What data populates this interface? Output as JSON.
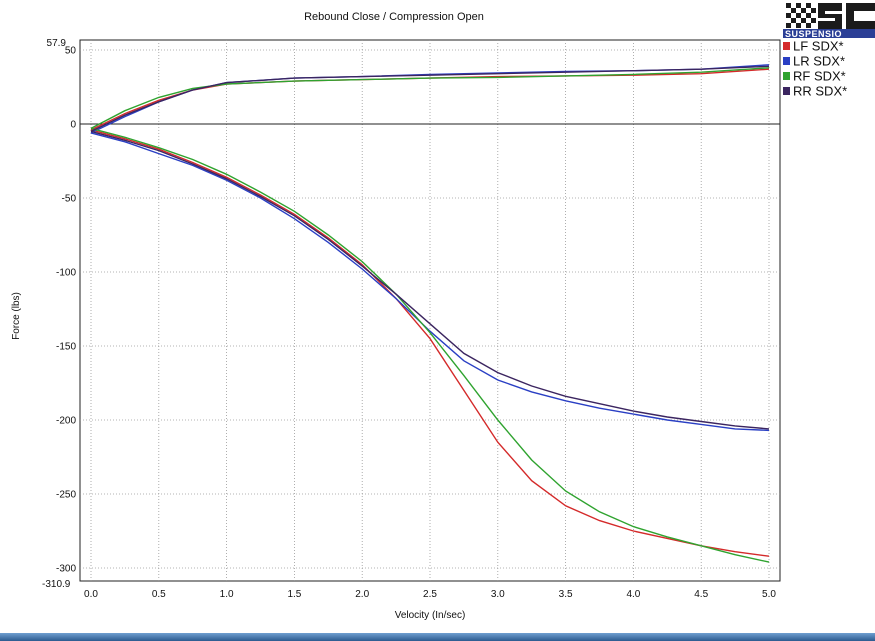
{
  "brand": {
    "logo_text": "SUSPENSIO",
    "colors": {
      "check_dark": "#1b1b1b",
      "check_light": "#ffffff",
      "banner": "#2b3f96"
    }
  },
  "chart_data": {
    "type": "line",
    "title": "Rebound Close / Compression Open",
    "xlabel": "Velocity (In/sec)",
    "ylabel": "Force (lbs)",
    "xlim": [
      0.0,
      5.0
    ],
    "ylim": [
      -310.9,
      57.9
    ],
    "x_ticks": [
      0.0,
      0.5,
      1.0,
      1.5,
      2.0,
      2.5,
      3.0,
      3.5,
      4.0,
      4.5,
      5.0
    ],
    "x_tick_labels": [
      "0.0",
      "0.5",
      "1.0",
      "1.5",
      "2.0",
      "2.5",
      "3.0",
      "3.5",
      "4.0",
      "4.5",
      "5.0"
    ],
    "y_ticks": [
      50,
      0,
      -50,
      -100,
      -150,
      -200,
      -250,
      -300
    ],
    "y_tick_labels": [
      "50",
      "0",
      "-50",
      "-100",
      "-150",
      "-200",
      "-250",
      "-300"
    ],
    "y_max_label": "57.9",
    "y_min_label": "-310.9",
    "grid": true,
    "legend_position": "top-right",
    "series": [
      {
        "name": "LF SDX*",
        "color": "#d42a2a",
        "compression": {
          "x": [
            0.0,
            0.25,
            0.5,
            0.75,
            1.0,
            1.5,
            2.0,
            2.5,
            3.0,
            3.5,
            4.0,
            4.5,
            5.0
          ],
          "y": [
            -4,
            7,
            16,
            23,
            27,
            29,
            30,
            31,
            32,
            32.5,
            33,
            34,
            37
          ]
        },
        "rebound": {
          "x": [
            0.0,
            0.25,
            0.5,
            0.75,
            1.0,
            1.25,
            1.5,
            1.75,
            2.0,
            2.25,
            2.5,
            2.75,
            3.0,
            3.25,
            3.5,
            3.75,
            4.0,
            4.25,
            4.5,
            4.75,
            5.0
          ],
          "y": [
            -4,
            -10,
            -17,
            -26,
            -36,
            -48,
            -61,
            -77,
            -95,
            -118,
            -145,
            -180,
            -215,
            -241,
            -258,
            -268,
            -275,
            -280,
            -285,
            -289,
            -292
          ]
        }
      },
      {
        "name": "LR SDX*",
        "color": "#2a3fc4",
        "compression": {
          "x": [
            0.0,
            0.25,
            0.5,
            0.75,
            1.0,
            1.5,
            2.0,
            2.5,
            3.0,
            3.5,
            4.0,
            4.5,
            5.0
          ],
          "y": [
            -6,
            5,
            15,
            23,
            28,
            31,
            32,
            33.5,
            34.5,
            35.5,
            36,
            37,
            40
          ]
        },
        "rebound": {
          "x": [
            0.0,
            0.25,
            0.5,
            0.75,
            1.0,
            1.25,
            1.5,
            1.75,
            2.0,
            2.25,
            2.5,
            2.75,
            3.0,
            3.25,
            3.5,
            3.75,
            4.0,
            4.25,
            4.5,
            4.75,
            5.0
          ],
          "y": [
            -6,
            -12,
            -20,
            -28,
            -38,
            -50,
            -64,
            -80,
            -98,
            -118,
            -140,
            -160,
            -173,
            -181,
            -187,
            -192,
            -196,
            -200,
            -203,
            -206,
            -207
          ]
        }
      },
      {
        "name": "RF SDX*",
        "color": "#2fa32f",
        "compression": {
          "x": [
            0.0,
            0.25,
            0.5,
            0.75,
            1.0,
            1.5,
            2.0,
            2.5,
            3.0,
            3.5,
            4.0,
            4.5,
            5.0
          ],
          "y": [
            -3,
            9,
            18,
            24,
            27,
            29,
            30,
            31,
            31.5,
            32.5,
            33.5,
            35,
            38
          ]
        },
        "rebound": {
          "x": [
            0.0,
            0.25,
            0.5,
            0.75,
            1.0,
            1.25,
            1.5,
            1.75,
            2.0,
            2.25,
            2.5,
            2.75,
            3.0,
            3.25,
            3.5,
            3.75,
            4.0,
            4.25,
            4.5,
            4.75,
            5.0
          ],
          "y": [
            -3,
            -9,
            -16,
            -24,
            -34,
            -46,
            -59,
            -75,
            -93,
            -115,
            -141,
            -170,
            -200,
            -227,
            -248,
            -262,
            -272,
            -279,
            -285,
            -291,
            -296
          ]
        }
      },
      {
        "name": "RR SDX*",
        "color": "#3b2560",
        "compression": {
          "x": [
            0.0,
            0.25,
            0.5,
            0.75,
            1.0,
            1.5,
            2.0,
            2.5,
            3.0,
            3.5,
            4.0,
            4.5,
            5.0
          ],
          "y": [
            -5,
            6,
            15,
            23,
            28,
            31,
            32,
            33,
            34,
            35,
            36,
            37,
            39
          ]
        },
        "rebound": {
          "x": [
            0.0,
            0.25,
            0.5,
            0.75,
            1.0,
            1.25,
            1.5,
            1.75,
            2.0,
            2.25,
            2.5,
            2.75,
            3.0,
            3.25,
            3.5,
            3.75,
            4.0,
            4.25,
            4.5,
            4.75,
            5.0
          ],
          "y": [
            -5,
            -11,
            -18,
            -27,
            -37,
            -49,
            -62,
            -78,
            -96,
            -115,
            -135,
            -155,
            -168,
            -177,
            -184,
            -189,
            -194,
            -198,
            -201,
            -204,
            -206
          ]
        }
      }
    ]
  }
}
